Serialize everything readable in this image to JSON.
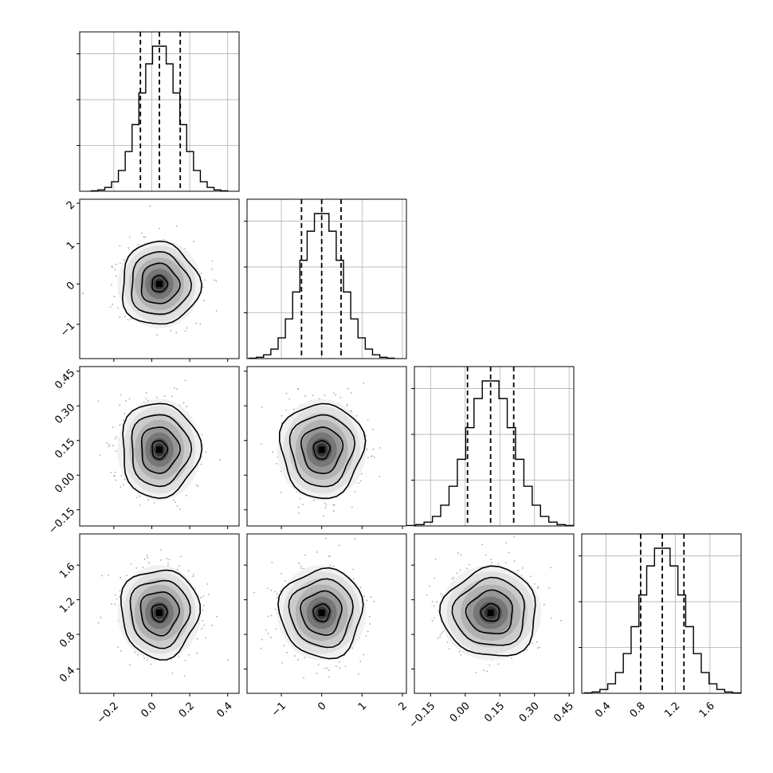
{
  "chart_data": {
    "type": "corner",
    "params": [
      {
        "ticks": [
          -0.2,
          0.0,
          0.2,
          0.4
        ],
        "tick_labels": [
          "−0.2",
          "0.0",
          "0.2",
          "0.4"
        ],
        "range": [
          -0.38,
          0.46
        ],
        "center": 0.04,
        "sd": 0.1
      },
      {
        "ticks": [
          -1,
          0,
          1,
          2
        ],
        "tick_labels": [
          "−1",
          "0",
          "1",
          "2"
        ],
        "range": [
          -1.85,
          2.1
        ],
        "center": 0.0,
        "sd": 0.5
      },
      {
        "ticks": [
          -0.15,
          0.0,
          0.15,
          0.3,
          0.45
        ],
        "tick_labels": [
          "−0.15",
          "0.00",
          "0.15",
          "0.30",
          "0.45"
        ],
        "range": [
          -0.22,
          0.47
        ],
        "center": 0.11,
        "sd": 0.1
      },
      {
        "ticks": [
          0.4,
          0.8,
          1.2,
          1.6
        ],
        "tick_labels": [
          "0.4",
          "0.8",
          "1.2",
          "1.6"
        ],
        "range": [
          0.12,
          1.96
        ],
        "center": 1.05,
        "sd": 0.25
      }
    ],
    "quantiles": [
      [
        -0.06,
        0.04,
        0.15
      ],
      [
        -0.5,
        0.0,
        0.48
      ],
      [
        0.01,
        0.11,
        0.21
      ],
      [
        0.8,
        1.05,
        1.3
      ]
    ],
    "hist_bins": 20,
    "grid": true,
    "colors": {
      "ink": "#000000",
      "grid": "#b0b0b0",
      "points": "#aaaaaa"
    }
  }
}
